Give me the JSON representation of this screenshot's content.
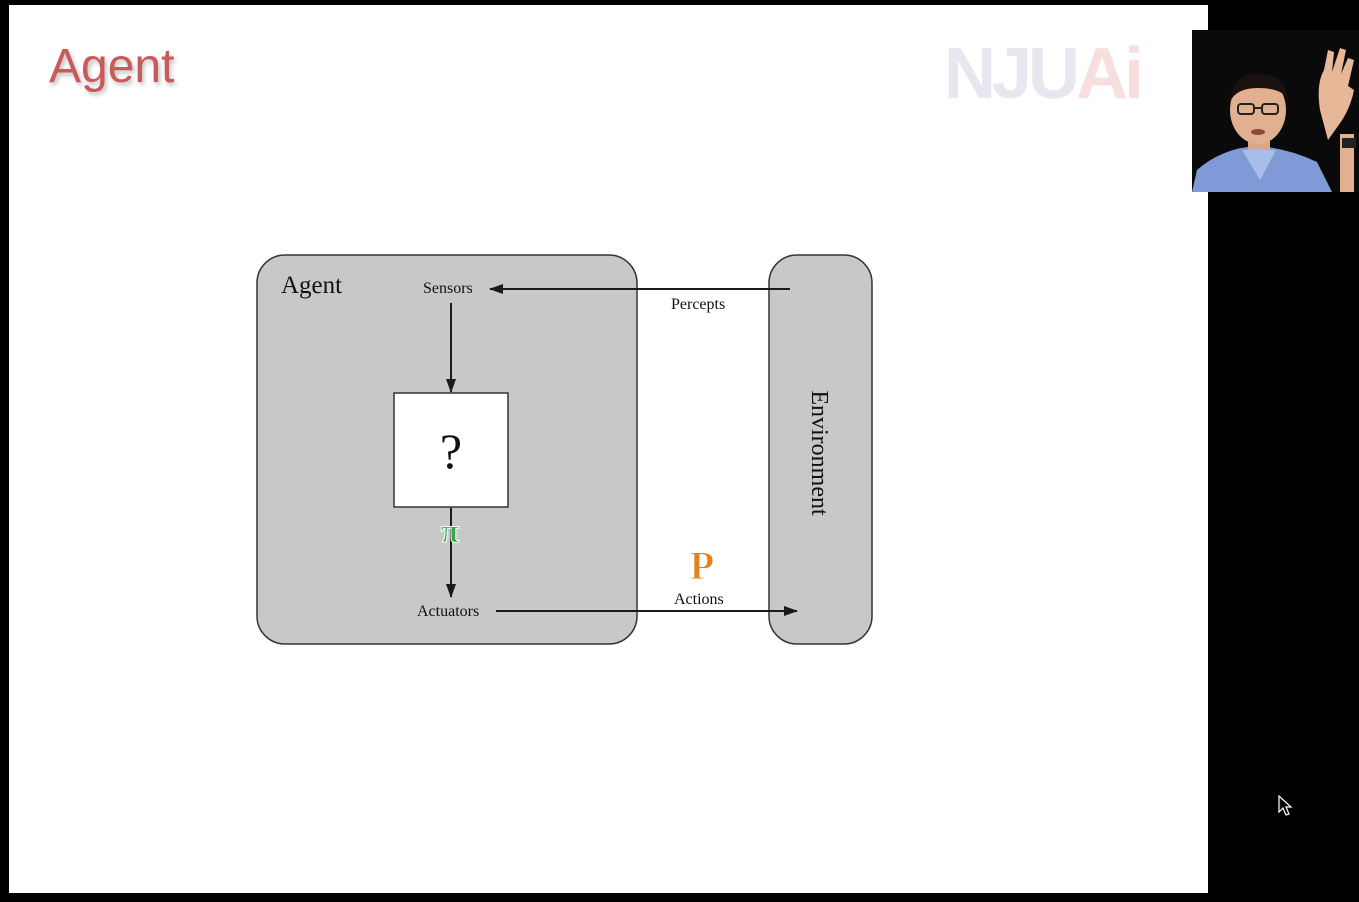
{
  "slide": {
    "title": "Agent",
    "logo": {
      "part1": "NJU",
      "part2": "Ai"
    }
  },
  "diagram": {
    "agent_label": "Agent",
    "sensors_label": "Sensors",
    "percepts_label": "Percepts",
    "box_label": "?",
    "pi_label": "π",
    "actuators_label": "Actuators",
    "p_label": "P",
    "actions_label": "Actions",
    "environment_label": "Environment"
  },
  "colors": {
    "title": "#c85a5a",
    "box_fill": "#c8c8c8",
    "pi": "#2aa84a",
    "p": "#e8801a"
  },
  "icons": {
    "cursor": "mouse-pointer-icon",
    "webcam": "presenter-video"
  }
}
